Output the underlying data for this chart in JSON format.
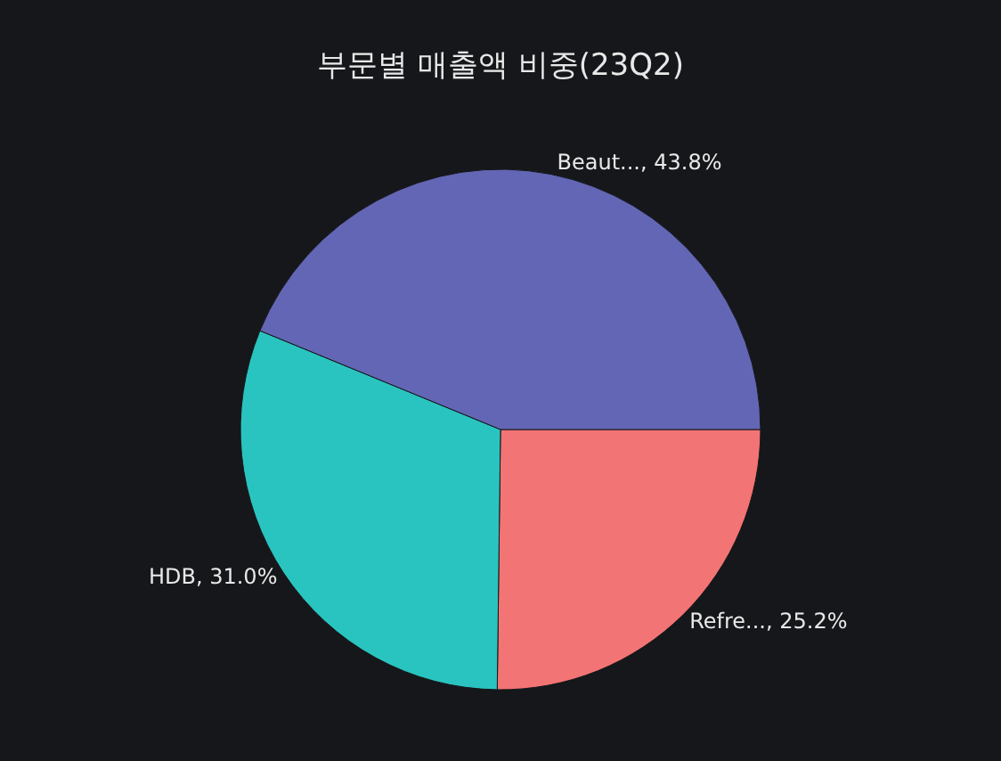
{
  "chart_data": {
    "type": "pie",
    "title": "부문별 매출액 비중(23Q2)",
    "categories": [
      "Refre...",
      "HDB",
      "Beaut..."
    ],
    "values": [
      25.2,
      31.0,
      43.8
    ],
    "value_labels": [
      "25.2%",
      "31.0%",
      "43.8%"
    ],
    "colors": [
      "#f37474",
      "#2ac4c0",
      "#6366b5"
    ],
    "legend": false
  }
}
